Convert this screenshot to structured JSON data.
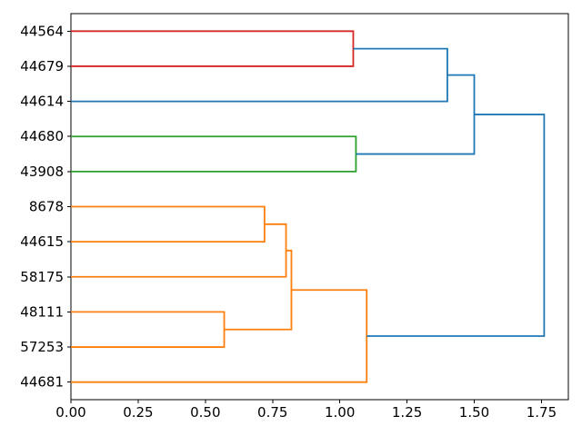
{
  "figure": {
    "background": "#ffffff",
    "axis_color": "#000000",
    "tick_label_color": "#000000"
  },
  "chart_data": {
    "type": "dendrogram",
    "orientation": "right",
    "title": "",
    "xlabel": "",
    "ylabel": "",
    "grid": false,
    "legend": null,
    "xlim": [
      0,
      1.85
    ],
    "xticks": [
      {
        "value": 0.0,
        "label": "0.00"
      },
      {
        "value": 0.25,
        "label": "0.25"
      },
      {
        "value": 0.5,
        "label": "0.50"
      },
      {
        "value": 0.75,
        "label": "0.75"
      },
      {
        "value": 1.0,
        "label": "1.00"
      },
      {
        "value": 1.25,
        "label": "1.25"
      },
      {
        "value": 1.5,
        "label": "1.50"
      },
      {
        "value": 1.75,
        "label": "1.75"
      }
    ],
    "leaves": [
      "44564",
      "44679",
      "44614",
      "44680",
      "43908",
      "8678",
      "44615",
      "58175",
      "48111",
      "57253",
      "44681"
    ],
    "merges": [
      {
        "children": [
          0,
          1
        ],
        "distance": 1.05,
        "color": "#d62728",
        "note": "44564+44679"
      },
      {
        "children": [
          11,
          2
        ],
        "distance": 1.4,
        "color": "#1f77b4",
        "note": "(44564,44679)+44614"
      },
      {
        "children": [
          3,
          4
        ],
        "distance": 1.06,
        "color": "#2ca02c",
        "note": "44680+43908"
      },
      {
        "children": [
          12,
          13
        ],
        "distance": 1.5,
        "color": "#1f77b4",
        "note": "upper blue join"
      },
      {
        "children": [
          5,
          6
        ],
        "distance": 0.72,
        "color": "#ff7f0e",
        "note": "8678+44615"
      },
      {
        "children": [
          15,
          7
        ],
        "distance": 0.8,
        "color": "#ff7f0e",
        "note": "+58175"
      },
      {
        "children": [
          8,
          9
        ],
        "distance": 0.57,
        "color": "#ff7f0e",
        "note": "48111+57253"
      },
      {
        "children": [
          16,
          17
        ],
        "distance": 0.82,
        "color": "#ff7f0e",
        "note": "orange join"
      },
      {
        "children": [
          18,
          10
        ],
        "distance": 1.1,
        "color": "#ff7f0e",
        "note": "+44681"
      },
      {
        "children": [
          14,
          19
        ],
        "distance": 1.76,
        "color": "#1f77b4",
        "note": "root"
      }
    ],
    "colors": {
      "above_threshold": "#1f77b4",
      "cluster_orange": "#ff7f0e",
      "cluster_green": "#2ca02c",
      "cluster_red": "#d62728"
    }
  }
}
